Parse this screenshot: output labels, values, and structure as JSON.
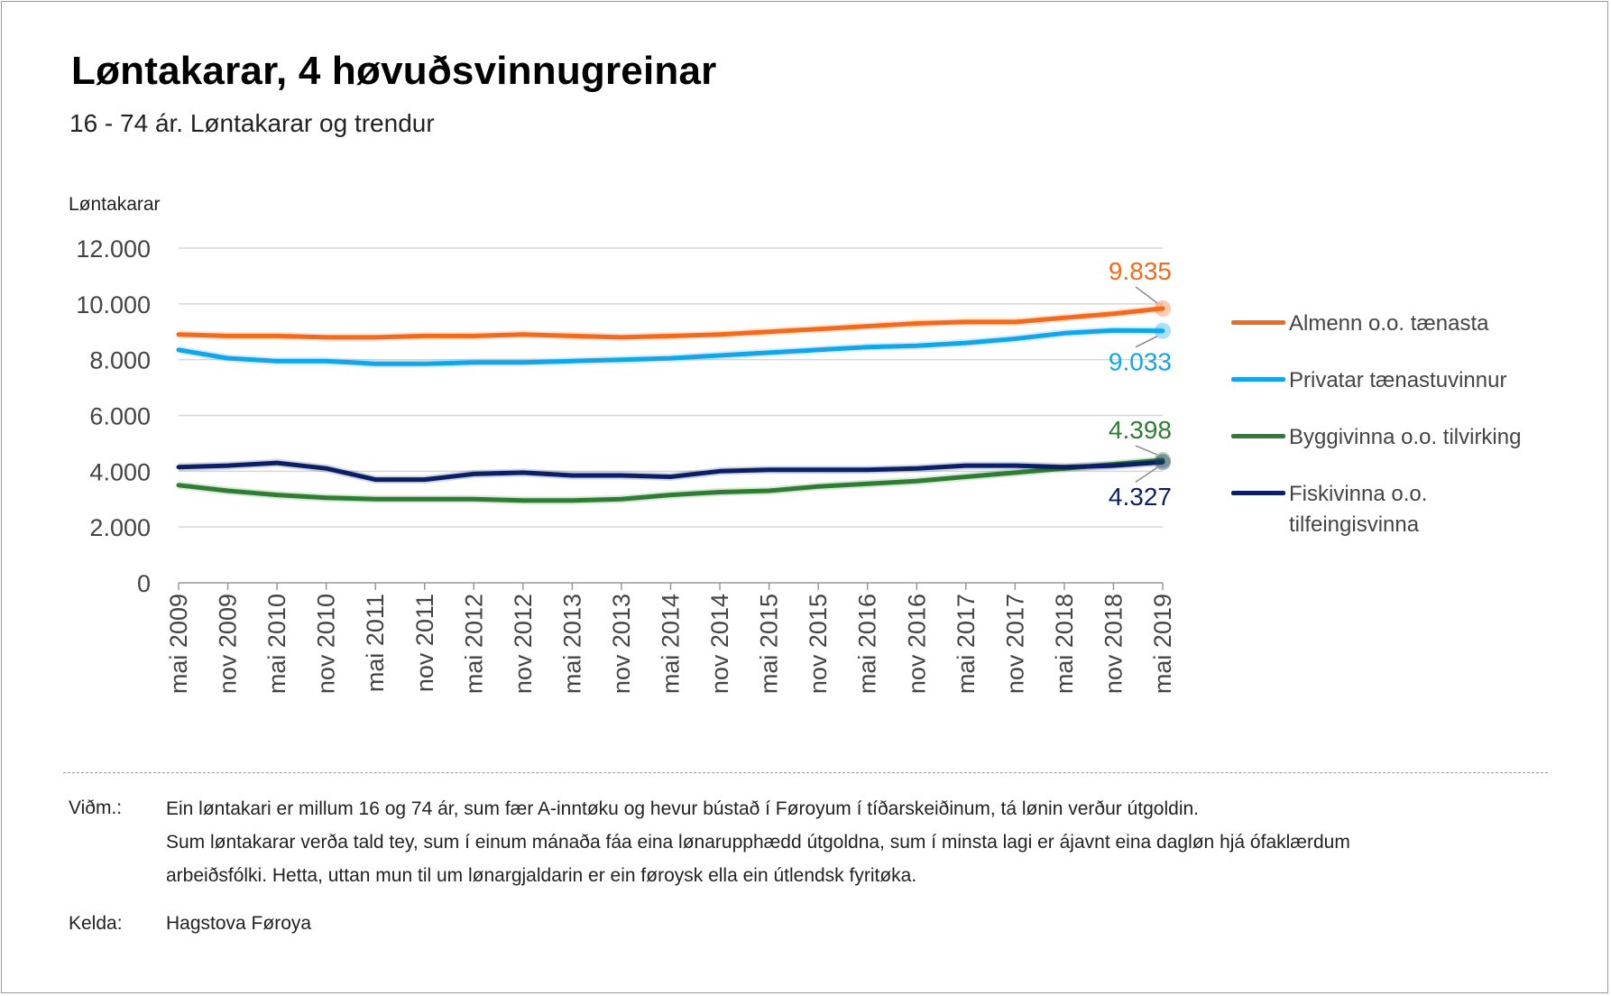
{
  "header": {
    "title": "Løntakarar, 4 høvuðsvinnugreinar",
    "subtitle": "16 - 74 ár. Løntakarar og trendur"
  },
  "chart_data": {
    "type": "line",
    "title": "Løntakarar, 4 høvuðsvinnugreinar",
    "subtitle": "16 - 74 ár. Løntakarar og trendur",
    "ylabel": "Løntakarar",
    "xlabel": "",
    "ylim": [
      0,
      12000
    ],
    "yticks": [
      0,
      2000,
      4000,
      6000,
      8000,
      10000,
      12000
    ],
    "ytick_labels": [
      "0",
      "2.000",
      "4.000",
      "6.000",
      "8.000",
      "10.000",
      "12.000"
    ],
    "x_categories": [
      "mai 2009",
      "nov 2009",
      "mai 2010",
      "nov 2010",
      "mai 2011",
      "nov 2011",
      "mai 2012",
      "nov 2012",
      "mai 2013",
      "nov 2013",
      "mai 2014",
      "nov 2014",
      "mai 2015",
      "nov 2015",
      "mai 2016",
      "nov 2016",
      "mai 2017",
      "nov 2017",
      "mai 2018",
      "nov 2018",
      "mai 2019"
    ],
    "grid": true,
    "legend_position": "right",
    "series": [
      {
        "name": "Almenn o.o. tænasta",
        "color": "#f26b1d",
        "trend": [
          8900,
          8850,
          8850,
          8800,
          8800,
          8850,
          8850,
          8900,
          8850,
          8800,
          8850,
          8900,
          9000,
          9100,
          9200,
          9300,
          9350,
          9350,
          9500,
          9650,
          9835
        ],
        "last_label": "9.835"
      },
      {
        "name": "Privatar tænastuvinnur",
        "color": "#12a6e8",
        "trend": [
          8350,
          8050,
          7950,
          7950,
          7850,
          7850,
          7900,
          7900,
          7950,
          8000,
          8050,
          8150,
          8250,
          8350,
          8450,
          8500,
          8600,
          8750,
          8950,
          9050,
          9033
        ],
        "last_label": "9.033"
      },
      {
        "name": "Byggivinna o.o. tilvirking",
        "color": "#2e7d32",
        "trend": [
          3500,
          3300,
          3150,
          3050,
          3000,
          3000,
          3000,
          2950,
          2950,
          3000,
          3150,
          3250,
          3300,
          3450,
          3550,
          3650,
          3800,
          3950,
          4100,
          4250,
          4398
        ],
        "last_label": "4.398"
      },
      {
        "name": "Fiskivinna o.o. tilfeingisvinna",
        "color": "#0b1f66",
        "trend": [
          4150,
          4200,
          4300,
          4100,
          3700,
          3700,
          3900,
          3950,
          3850,
          3850,
          3800,
          4000,
          4050,
          4050,
          4050,
          4100,
          4200,
          4200,
          4150,
          4200,
          4327
        ],
        "last_label": "4.327"
      }
    ]
  },
  "legend": {
    "items": [
      {
        "label": "Almenn o.o. tænasta",
        "color": "#f26b1d"
      },
      {
        "label": "Privatar tænastuvinnur",
        "color": "#12a6e8"
      },
      {
        "label": "Byggivinna o.o. tilvirking",
        "color": "#2e7d32"
      },
      {
        "label": "Fiskivinna o.o. tilfeingisvinna",
        "color": "#0b1f66"
      }
    ]
  },
  "notes": {
    "remark_key": "Viðm.:",
    "remark_lines": [
      "Ein løntakari er millum 16 og 74 ár, sum fær A-inntøku og hevur bústað í Føroyum í tíðarskeiðinum, tá lønin verður útgoldin.",
      "Sum løntakarar verða tald tey, sum í einum mánaða fáa eina lønarupphædd útgoldna, sum í minsta lagi er ájavnt eina dagløn hjá ófaklærdum",
      "arbeiðsfólki. Hetta, uttan mun til um lønargjaldarin er ein føroysk ella ein útlendsk fyritøka."
    ],
    "source_key": "Kelda:",
    "source_value": "Hagstova Føroya"
  }
}
